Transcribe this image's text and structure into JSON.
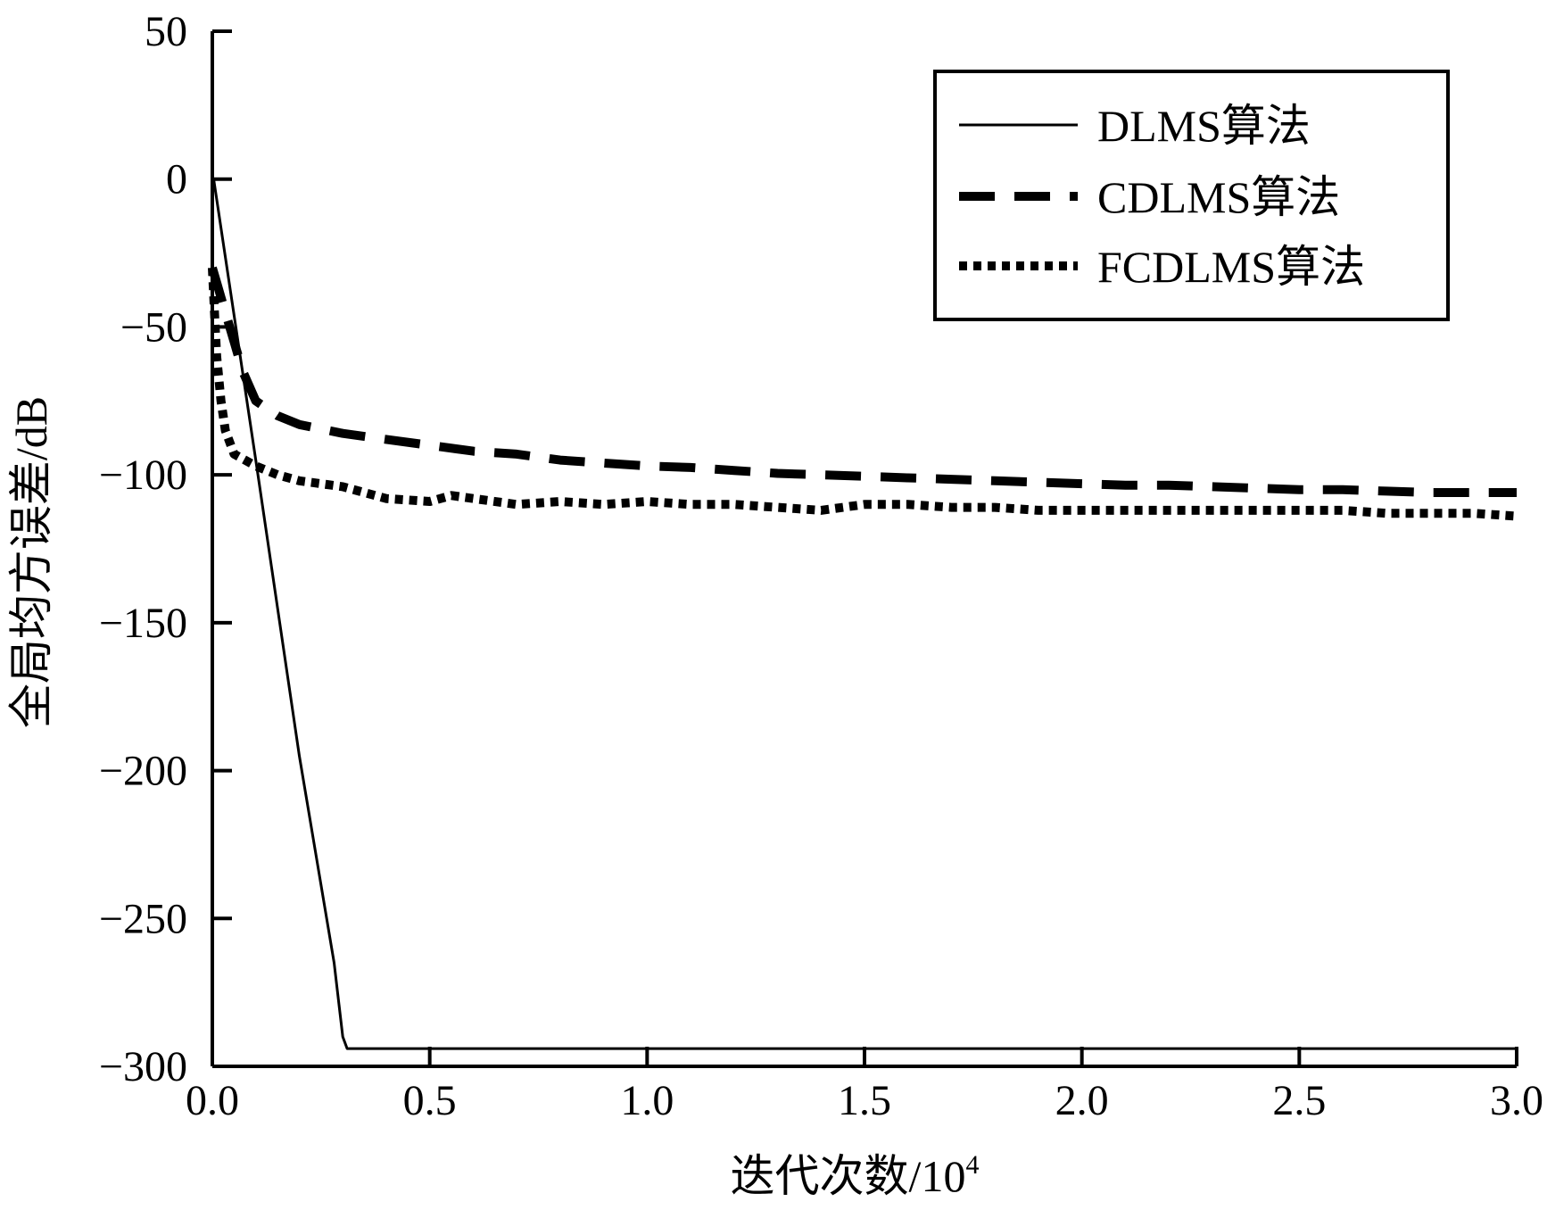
{
  "chart_data": {
    "type": "line",
    "title": "",
    "xlabel": "迭代次数/10",
    "xlabel_sup": "4",
    "ylabel": "全局均方误差/dB",
    "xlim": [
      0,
      3.0
    ],
    "ylim": [
      -300,
      50
    ],
    "xticks": [
      0,
      0.5,
      1.0,
      1.5,
      2.0,
      2.5,
      3.0
    ],
    "xtick_labels": [
      "0.0",
      "0.5",
      "1.0",
      "1.5",
      "2.0",
      "2.5",
      "3.0"
    ],
    "yticks": [
      50,
      0,
      -50,
      -100,
      -150,
      -200,
      -250,
      -300
    ],
    "ytick_labels": [
      "50",
      "0",
      "−50",
      "−100",
      "−150",
      "−200",
      "−250",
      "−300"
    ],
    "grid": false,
    "legend_position": "top-right",
    "series": [
      {
        "name": "DLMS算法",
        "style": "solid",
        "x": [
          0,
          0.003,
          0.1,
          0.2,
          0.28,
          0.3,
          0.31,
          0.35,
          0.5,
          1.0,
          1.5,
          2.0,
          2.5,
          3.0
        ],
        "y": [
          -5,
          0,
          -95,
          -195,
          -265,
          -290,
          -294,
          -294,
          -294,
          -294,
          -294,
          -294,
          -294,
          -294
        ]
      },
      {
        "name": "CDLMS算法",
        "style": "dashed",
        "x": [
          0,
          0.01,
          0.02,
          0.03,
          0.05,
          0.07,
          0.1,
          0.15,
          0.2,
          0.3,
          0.4,
          0.5,
          0.6,
          0.7,
          0.8,
          0.9,
          1.0,
          1.1,
          1.2,
          1.3,
          1.4,
          1.5,
          1.6,
          1.7,
          1.8,
          1.9,
          2.0,
          2.1,
          2.2,
          2.3,
          2.4,
          2.5,
          2.6,
          2.7,
          2.8,
          2.9,
          3.0
        ],
        "y": [
          -30,
          -35,
          -40,
          -45,
          -55,
          -65,
          -75,
          -80,
          -83,
          -86,
          -88,
          -90,
          -92,
          -93,
          -95,
          -96,
          -97,
          -97.5,
          -98.5,
          -99.5,
          -100,
          -100.5,
          -101,
          -101.5,
          -102,
          -102.5,
          -103,
          -103.5,
          -103.5,
          -104,
          -104.5,
          -105,
          -105,
          -105.5,
          -106,
          -106,
          -106
        ]
      },
      {
        "name": "FCDLMS算法",
        "style": "dotted",
        "x": [
          0,
          0.005,
          0.01,
          0.02,
          0.03,
          0.05,
          0.1,
          0.15,
          0.2,
          0.3,
          0.4,
          0.5,
          0.55,
          0.6,
          0.7,
          0.8,
          0.9,
          1.0,
          1.1,
          1.2,
          1.3,
          1.4,
          1.5,
          1.6,
          1.7,
          1.8,
          1.9,
          2.0,
          2.1,
          2.2,
          2.3,
          2.4,
          2.5,
          2.6,
          2.7,
          2.8,
          2.9,
          3.0
        ],
        "y": [
          -30,
          -45,
          -60,
          -75,
          -85,
          -93,
          -97,
          -100,
          -102,
          -104,
          -108,
          -109,
          -107,
          -108,
          -110,
          -109,
          -110,
          -109,
          -110,
          -110,
          -111,
          -112,
          -110,
          -110,
          -111,
          -111,
          -112,
          -112,
          -112,
          -112,
          -112,
          -112,
          -112,
          -112,
          -113,
          -113,
          -113,
          -114
        ]
      }
    ]
  }
}
